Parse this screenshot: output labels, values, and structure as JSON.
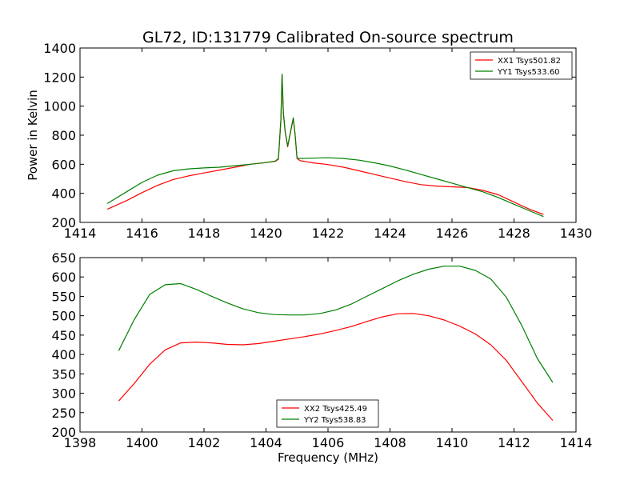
{
  "chart_data": [
    {
      "type": "line",
      "title": "GL72, ID:131779 Calibrated On-source spectrum",
      "xlabel": "",
      "ylabel": "Power in Kelvin",
      "xlim": [
        1414,
        1430
      ],
      "ylim": [
        200,
        1400
      ],
      "xticks": [
        "1414",
        "1416",
        "1418",
        "1420",
        "1422",
        "1424",
        "1426",
        "1428",
        "1430"
      ],
      "yticks": [
        "200",
        "400",
        "600",
        "800",
        "1000",
        "1200",
        "1400"
      ],
      "legend_position": "top-right",
      "grid": false,
      "series": [
        {
          "name": "XX1 Tsys501.82",
          "color": "#ff0000",
          "x": [
            1414.88,
            1415.5,
            1416.0,
            1416.5,
            1417.0,
            1417.5,
            1418.0,
            1418.5,
            1419.0,
            1419.5,
            1420.0,
            1420.3,
            1420.4,
            1420.48,
            1420.52,
            1420.56,
            1420.62,
            1420.7,
            1420.8,
            1420.88,
            1420.94,
            1421.0,
            1421.1,
            1421.5,
            1422.0,
            1422.5,
            1423.0,
            1423.5,
            1424.0,
            1424.5,
            1425.0,
            1425.5,
            1426.0,
            1426.5,
            1427.0,
            1427.5,
            1428.0,
            1428.5,
            1428.95
          ],
          "values": [
            290,
            350,
            405,
            455,
            495,
            520,
            540,
            560,
            580,
            600,
            612,
            620,
            635,
            900,
            1215,
            950,
            820,
            720,
            830,
            915,
            800,
            640,
            625,
            610,
            598,
            580,
            555,
            530,
            505,
            480,
            460,
            450,
            445,
            440,
            420,
            390,
            340,
            290,
            255
          ]
        },
        {
          "name": "YY1 Tsys533.60",
          "color": "#008000",
          "x": [
            1414.88,
            1415.5,
            1416.0,
            1416.5,
            1417.0,
            1417.5,
            1418.0,
            1418.5,
            1419.0,
            1419.5,
            1420.0,
            1420.3,
            1420.4,
            1420.48,
            1420.52,
            1420.56,
            1420.62,
            1420.7,
            1420.8,
            1420.88,
            1420.94,
            1421.0,
            1421.1,
            1421.5,
            1422.0,
            1422.5,
            1423.0,
            1423.5,
            1424.0,
            1424.5,
            1425.0,
            1425.5,
            1426.0,
            1426.5,
            1427.0,
            1427.5,
            1428.0,
            1428.5,
            1428.95
          ],
          "values": [
            330,
            410,
            475,
            525,
            555,
            568,
            575,
            580,
            590,
            600,
            612,
            622,
            640,
            910,
            1220,
            955,
            825,
            725,
            835,
            920,
            805,
            642,
            640,
            642,
            645,
            640,
            628,
            610,
            588,
            560,
            530,
            500,
            470,
            440,
            410,
            370,
            325,
            280,
            240
          ]
        }
      ]
    },
    {
      "type": "line",
      "title": "",
      "xlabel": "Frequency (MHz)",
      "ylabel": "",
      "xlim": [
        1398,
        1414
      ],
      "ylim": [
        200,
        650
      ],
      "xticks": [
        "1398",
        "1400",
        "1402",
        "1404",
        "1406",
        "1408",
        "1410",
        "1412",
        "1414"
      ],
      "yticks": [
        "200",
        "250",
        "300",
        "350",
        "400",
        "450",
        "500",
        "550",
        "600",
        "650"
      ],
      "legend_position": "lower-center",
      "grid": false,
      "series": [
        {
          "name": "XX2 Tsys425.49",
          "color": "#ff0000",
          "x": [
            1399.25,
            1399.75,
            1400.25,
            1400.75,
            1401.25,
            1401.75,
            1402.25,
            1402.75,
            1403.25,
            1403.75,
            1404.25,
            1404.75,
            1405.25,
            1405.75,
            1406.25,
            1406.75,
            1407.25,
            1407.75,
            1408.25,
            1408.75,
            1409.25,
            1409.75,
            1410.25,
            1410.75,
            1411.25,
            1411.75,
            1412.25,
            1412.75,
            1413.25
          ],
          "values": [
            280,
            325,
            375,
            412,
            430,
            432,
            430,
            426,
            425,
            428,
            434,
            440,
            446,
            453,
            462,
            472,
            485,
            497,
            505,
            506,
            500,
            489,
            473,
            453,
            425,
            385,
            330,
            275,
            230
          ]
        },
        {
          "name": "YY2 Tsys538.83",
          "color": "#008000",
          "x": [
            1399.25,
            1399.75,
            1400.25,
            1400.75,
            1401.25,
            1401.75,
            1402.25,
            1402.75,
            1403.25,
            1403.75,
            1404.25,
            1404.75,
            1405.25,
            1405.75,
            1406.25,
            1406.75,
            1407.25,
            1407.75,
            1408.25,
            1408.75,
            1409.25,
            1409.75,
            1410.25,
            1410.75,
            1411.25,
            1411.75,
            1412.25,
            1412.75,
            1413.25
          ],
          "values": [
            410,
            490,
            555,
            580,
            583,
            568,
            550,
            533,
            518,
            508,
            503,
            502,
            502,
            506,
            515,
            530,
            550,
            570,
            590,
            607,
            620,
            628,
            628,
            617,
            595,
            548,
            475,
            390,
            328
          ]
        }
      ]
    }
  ]
}
